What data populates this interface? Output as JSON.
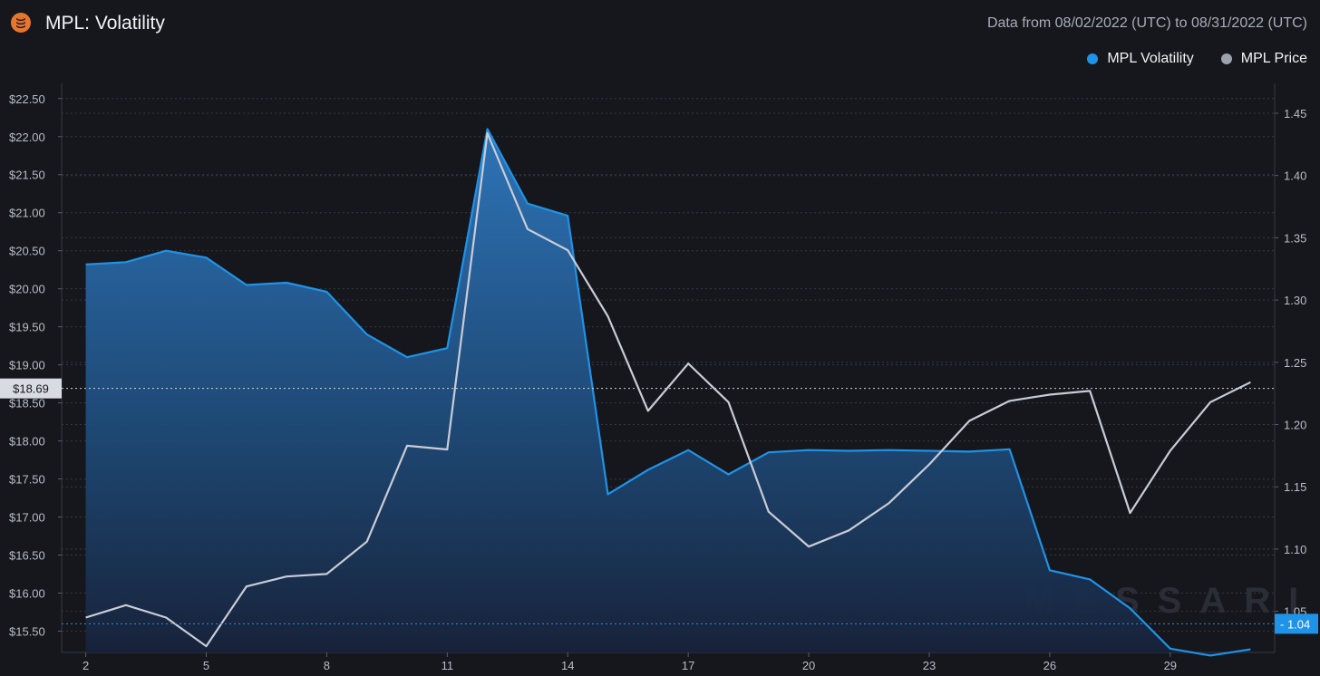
{
  "header": {
    "title": "MPL: Volatility",
    "date_range": "Data from 08/02/2022 (UTC) to 08/31/2022 (UTC)",
    "logo_icon": "stacked-coins-icon"
  },
  "legend": [
    {
      "label": "MPL Volatility",
      "color": "#1e93e8"
    },
    {
      "label": "MPL Price",
      "color": "#9ea2ad"
    }
  ],
  "watermark": "MESSARI",
  "colors": {
    "background": "#16171c",
    "volatility": "#1e93e8",
    "price": "#c9ccd6",
    "grid": "#353844"
  },
  "chart_data": {
    "type": "area",
    "x": [
      2,
      3,
      4,
      5,
      6,
      7,
      8,
      9,
      10,
      11,
      12,
      13,
      14,
      15,
      16,
      17,
      18,
      19,
      20,
      21,
      22,
      23,
      24,
      25,
      26,
      27,
      28,
      29,
      30,
      31
    ],
    "x_ticks": [
      "2",
      "5",
      "8",
      "11",
      "14",
      "17",
      "20",
      "23",
      "26",
      "29"
    ],
    "series": [
      {
        "name": "MPL Volatility",
        "axis": "left",
        "values": [
          20.32,
          20.35,
          20.5,
          20.41,
          20.05,
          20.08,
          19.96,
          19.4,
          19.1,
          19.22,
          22.1,
          21.12,
          20.96,
          17.3,
          17.62,
          17.88,
          17.56,
          17.85,
          17.88,
          17.87,
          17.88,
          17.87,
          17.86,
          17.89,
          16.3,
          16.18,
          15.8,
          15.27,
          15.18,
          15.26
        ]
      },
      {
        "name": "MPL Price",
        "axis": "right",
        "values": [
          1.045,
          1.055,
          1.045,
          1.022,
          1.07,
          1.078,
          1.08,
          1.106,
          1.183,
          1.18,
          1.434,
          1.357,
          1.34,
          1.287,
          1.211,
          1.249,
          1.218,
          1.13,
          1.102,
          1.115,
          1.137,
          1.168,
          1.203,
          1.219,
          1.224,
          1.227,
          1.129,
          1.179,
          1.218,
          1.234
        ]
      }
    ],
    "y_left": {
      "ticks": [
        "$15.50",
        "$16.00",
        "$16.50",
        "$17.00",
        "$17.50",
        "$18.00",
        "$18.50",
        "$19.00",
        "$19.50",
        "$20.00",
        "$20.50",
        "$21.00",
        "$21.50",
        "$22.00",
        "$22.50"
      ],
      "ylim": [
        15.22,
        22.7
      ]
    },
    "y_right": {
      "ticks": [
        "1.05",
        "1.10",
        "1.15",
        "1.20",
        "1.25",
        "1.30",
        "1.35",
        "1.40",
        "1.45"
      ],
      "ylim": [
        1.017,
        1.474
      ]
    },
    "crosshair_left": {
      "value": 18.69,
      "label": "$18.69"
    },
    "crosshair_right": {
      "value": 1.04,
      "label": "1.04"
    },
    "grid": true,
    "legend_position": "top-right"
  }
}
